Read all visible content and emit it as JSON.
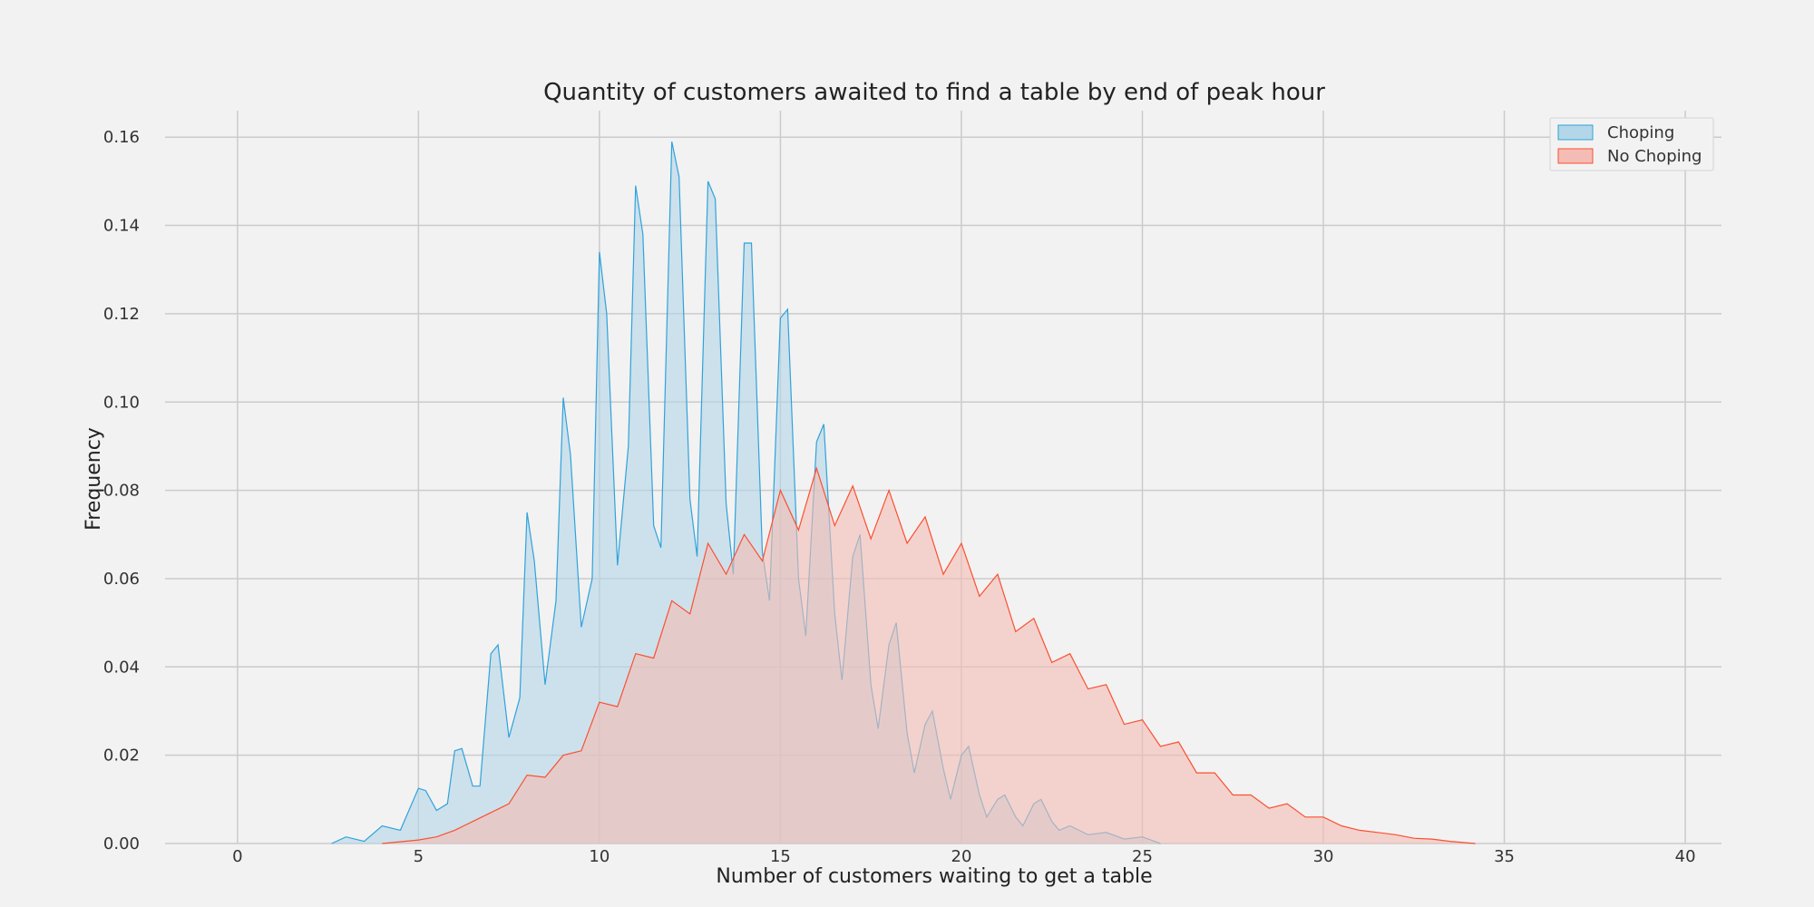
{
  "chart_data": {
    "type": "area",
    "title": "Quantity of customers awaited to find a table by end of peak hour",
    "xlabel": "Number of customers waiting to get a table",
    "ylabel": "Frequency",
    "xlim": [
      -2,
      41
    ],
    "ylim": [
      0,
      0.166
    ],
    "xticks": [
      0,
      5,
      10,
      15,
      20,
      25,
      30,
      35,
      40
    ],
    "yticks": [
      0.0,
      0.02,
      0.04,
      0.06,
      0.08,
      0.1,
      0.12,
      0.14,
      0.16
    ],
    "ytick_labels": [
      "0.00",
      "0.02",
      "0.04",
      "0.06",
      "0.08",
      "0.10",
      "0.12",
      "0.14",
      "0.16"
    ],
    "grid": true,
    "legend": {
      "position": "top-right"
    },
    "series": [
      {
        "name": "Choping",
        "color": "#30a2da",
        "fill": "#b3d6e8",
        "points": [
          [
            2.6,
            0.0
          ],
          [
            3.0,
            0.0015
          ],
          [
            3.5,
            0.0005
          ],
          [
            4.0,
            0.004
          ],
          [
            4.5,
            0.003
          ],
          [
            5.0,
            0.0125
          ],
          [
            5.2,
            0.012
          ],
          [
            5.5,
            0.0075
          ],
          [
            5.8,
            0.009
          ],
          [
            6.0,
            0.021
          ],
          [
            6.2,
            0.0215
          ],
          [
            6.5,
            0.013
          ],
          [
            6.7,
            0.013
          ],
          [
            7.0,
            0.043
          ],
          [
            7.2,
            0.045
          ],
          [
            7.5,
            0.024
          ],
          [
            7.8,
            0.033
          ],
          [
            8.0,
            0.075
          ],
          [
            8.2,
            0.064
          ],
          [
            8.5,
            0.036
          ],
          [
            8.8,
            0.055
          ],
          [
            9.0,
            0.101
          ],
          [
            9.2,
            0.088
          ],
          [
            9.5,
            0.049
          ],
          [
            9.8,
            0.06
          ],
          [
            10.0,
            0.134
          ],
          [
            10.2,
            0.12
          ],
          [
            10.5,
            0.063
          ],
          [
            10.8,
            0.09
          ],
          [
            11.0,
            0.149
          ],
          [
            11.2,
            0.138
          ],
          [
            11.5,
            0.072
          ],
          [
            11.7,
            0.067
          ],
          [
            12.0,
            0.159
          ],
          [
            12.2,
            0.151
          ],
          [
            12.5,
            0.078
          ],
          [
            12.7,
            0.065
          ],
          [
            13.0,
            0.15
          ],
          [
            13.2,
            0.146
          ],
          [
            13.5,
            0.077
          ],
          [
            13.7,
            0.061
          ],
          [
            14.0,
            0.136
          ],
          [
            14.2,
            0.136
          ],
          [
            14.5,
            0.066
          ],
          [
            14.7,
            0.055
          ],
          [
            15.0,
            0.119
          ],
          [
            15.2,
            0.121
          ],
          [
            15.5,
            0.06
          ],
          [
            15.7,
            0.047
          ],
          [
            16.0,
            0.091
          ],
          [
            16.2,
            0.095
          ],
          [
            16.5,
            0.052
          ],
          [
            16.7,
            0.037
          ],
          [
            17.0,
            0.065
          ],
          [
            17.2,
            0.07
          ],
          [
            17.5,
            0.036
          ],
          [
            17.7,
            0.026
          ],
          [
            18.0,
            0.045
          ],
          [
            18.2,
            0.05
          ],
          [
            18.5,
            0.025
          ],
          [
            18.7,
            0.016
          ],
          [
            19.0,
            0.027
          ],
          [
            19.2,
            0.03
          ],
          [
            19.5,
            0.017
          ],
          [
            19.7,
            0.01
          ],
          [
            20.0,
            0.02
          ],
          [
            20.2,
            0.022
          ],
          [
            20.5,
            0.011
          ],
          [
            20.7,
            0.006
          ],
          [
            21.0,
            0.01
          ],
          [
            21.2,
            0.011
          ],
          [
            21.5,
            0.006
          ],
          [
            21.7,
            0.004
          ],
          [
            22.0,
            0.009
          ],
          [
            22.2,
            0.01
          ],
          [
            22.5,
            0.005
          ],
          [
            22.7,
            0.003
          ],
          [
            23.0,
            0.004
          ],
          [
            23.5,
            0.002
          ],
          [
            24.0,
            0.0025
          ],
          [
            24.5,
            0.001
          ],
          [
            25.0,
            0.0015
          ],
          [
            25.5,
            0.0
          ]
        ]
      },
      {
        "name": "No Choping",
        "color": "#fc4f30",
        "fill": "#f4bcb4",
        "points": [
          [
            4.0,
            0.0
          ],
          [
            5.0,
            0.0008
          ],
          [
            5.5,
            0.0015
          ],
          [
            6.0,
            0.003
          ],
          [
            6.5,
            0.005
          ],
          [
            7.0,
            0.007
          ],
          [
            7.5,
            0.009
          ],
          [
            8.0,
            0.0155
          ],
          [
            8.5,
            0.015
          ],
          [
            9.0,
            0.02
          ],
          [
            9.5,
            0.021
          ],
          [
            10.0,
            0.032
          ],
          [
            10.5,
            0.031
          ],
          [
            11.0,
            0.043
          ],
          [
            11.5,
            0.042
          ],
          [
            12.0,
            0.055
          ],
          [
            12.5,
            0.052
          ],
          [
            13.0,
            0.068
          ],
          [
            13.5,
            0.061
          ],
          [
            14.0,
            0.07
          ],
          [
            14.5,
            0.064
          ],
          [
            15.0,
            0.08
          ],
          [
            15.5,
            0.071
          ],
          [
            16.0,
            0.085
          ],
          [
            16.5,
            0.072
          ],
          [
            17.0,
            0.081
          ],
          [
            17.5,
            0.069
          ],
          [
            18.0,
            0.08
          ],
          [
            18.5,
            0.068
          ],
          [
            19.0,
            0.074
          ],
          [
            19.5,
            0.061
          ],
          [
            20.0,
            0.068
          ],
          [
            20.5,
            0.056
          ],
          [
            21.0,
            0.061
          ],
          [
            21.5,
            0.048
          ],
          [
            22.0,
            0.051
          ],
          [
            22.5,
            0.041
          ],
          [
            23.0,
            0.043
          ],
          [
            23.5,
            0.035
          ],
          [
            24.0,
            0.036
          ],
          [
            24.5,
            0.027
          ],
          [
            25.0,
            0.028
          ],
          [
            25.5,
            0.022
          ],
          [
            26.0,
            0.023
          ],
          [
            26.5,
            0.016
          ],
          [
            27.0,
            0.016
          ],
          [
            27.5,
            0.011
          ],
          [
            28.0,
            0.011
          ],
          [
            28.5,
            0.008
          ],
          [
            29.0,
            0.009
          ],
          [
            29.5,
            0.006
          ],
          [
            30.0,
            0.006
          ],
          [
            30.5,
            0.004
          ],
          [
            31.0,
            0.003
          ],
          [
            31.5,
            0.0025
          ],
          [
            32.0,
            0.002
          ],
          [
            32.5,
            0.0012
          ],
          [
            33.0,
            0.001
          ],
          [
            33.5,
            0.0005
          ],
          [
            34.2,
            0.0
          ]
        ]
      }
    ]
  }
}
